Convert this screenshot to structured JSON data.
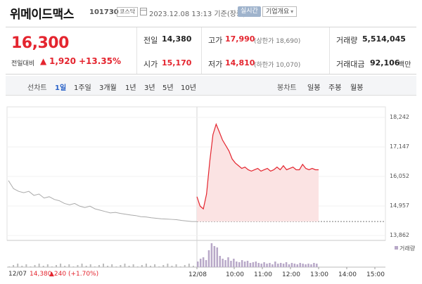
{
  "header": {
    "name": "위메이드맥스",
    "code": "101730",
    "market": "코스닥",
    "datetime": "2023.12.08 13:13 기준(장중)",
    "realtime": "실시간",
    "overview": "기업개요",
    "overview_caret": "▾"
  },
  "quote": {
    "price": "16,300",
    "prev_label": "전일대비",
    "change_arrow": "▲",
    "change": "1,920",
    "change_pct": "+13.35%",
    "prev_close_label": "전일",
    "prev_close": "14,380",
    "open_label": "시가",
    "open": "15,170",
    "high_label": "고가",
    "high": "17,990",
    "upper_limit": "(상한가 18,690)",
    "low_label": "저가",
    "low": "14,810",
    "lower_limit": "(하한가 10,070)",
    "volume_label": "거래량",
    "volume": "5,514,045",
    "amount_label": "거래대금",
    "amount": "92,106",
    "amount_unit": "백만"
  },
  "tabs": {
    "line_label": "선차트",
    "line_tabs": [
      "1일",
      "1주일",
      "3개월",
      "1년",
      "3년",
      "5년",
      "10년"
    ],
    "candle_label": "봉차트",
    "candle_tabs": [
      "일봉",
      "주봉",
      "월봉"
    ],
    "active": "1일"
  },
  "chart_data": {
    "type": "line",
    "y_ticks": [
      "18,242",
      "17,147",
      "16,052",
      "14,957",
      "13,862"
    ],
    "ylim": [
      13862,
      18242
    ],
    "x_ticks": [
      "12/08",
      "10:00",
      "11:00",
      "12:00",
      "13:00",
      "14:00",
      "15:00"
    ],
    "prev_day_label": "12/07",
    "prev_close": 14380,
    "prev_day_change": "▲240 (+1.70%)",
    "volume_legend": "거래량",
    "colors": {
      "up": "#e4252f",
      "prev_line": "#aaaaaa",
      "fill": "#fbe3e3",
      "volume_prev": "#bbbbbb",
      "volume_today": "#b8a8c8"
    },
    "series": [
      {
        "name": "12/07",
        "values": [
          15900,
          15600,
          15500,
          15450,
          15500,
          15350,
          15400,
          15250,
          15300,
          15200,
          15150,
          15050,
          15000,
          15050,
          14950,
          14900,
          14950,
          14850,
          14800,
          14750,
          14700,
          14720,
          14680,
          14650,
          14620,
          14600,
          14560,
          14550,
          14520,
          14500,
          14480,
          14470,
          14460,
          14450,
          14420,
          14400,
          14380,
          14380
        ]
      },
      {
        "name": "12/08",
        "values": [
          15300,
          14950,
          14850,
          15400,
          16600,
          17600,
          17990,
          17700,
          17400,
          17200,
          17000,
          16700,
          16550,
          16450,
          16350,
          16400,
          16300,
          16250,
          16300,
          16350,
          16250,
          16300,
          16350,
          16250,
          16300,
          16400,
          16300,
          16450,
          16300,
          16350,
          16400,
          16300,
          16300,
          16500,
          16350,
          16300,
          16350,
          16300,
          16300
        ]
      }
    ]
  }
}
